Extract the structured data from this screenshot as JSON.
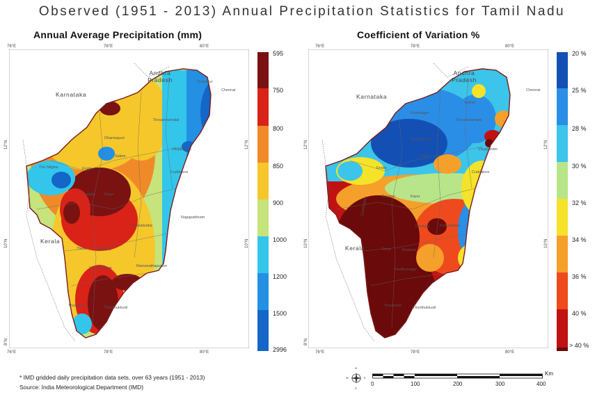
{
  "title": "Observed (1951 - 2013) Annual Precipitation Statistics for Tamil Nadu",
  "left_map": {
    "title": "Annual Average Precipitation (mm)",
    "legend": {
      "labels": [
        "595",
        "750",
        "800",
        "850",
        "900",
        "1000",
        "1200",
        "1500",
        "2996"
      ],
      "colors": [
        "#7a1212",
        "#d92218",
        "#f08a28",
        "#f5c72a",
        "#c6e37c",
        "#33c6ea",
        "#2490e4",
        "#1466c8",
        "#0d3f9c"
      ]
    }
  },
  "right_map": {
    "title": "Coefficient of Variation %",
    "legend": {
      "labels": [
        "20 %",
        "25 %",
        "28 %",
        "30 %",
        "32 %",
        "34 %",
        "36 %",
        "40 %",
        "> 40 %"
      ],
      "colors": [
        "#1450b4",
        "#2a8ee6",
        "#3cc4ea",
        "#b8e58a",
        "#f5e22a",
        "#f5a02a",
        "#ee4a1e",
        "#c01212",
        "#6a0a0a"
      ]
    }
  },
  "axes": {
    "x_ticks": [
      "76°E",
      "78°E",
      "80°E"
    ],
    "y_ticks": [
      "12°N",
      "10°N",
      "8°N"
    ]
  },
  "labels": {
    "karnataka": "Karnataka",
    "andhra": "Andhra Pradesh",
    "kerala": "Kerala",
    "chennai": "Chennai"
  },
  "left_cities": [
    "Tiruvallur",
    "Dharmapuri",
    "Erode",
    "Tiruppur",
    "Karur",
    "Pudukkottai",
    "Theni",
    "Madurai",
    "Virudhunagar",
    "Tirunelveli",
    "Thoothukkudi",
    "Viluppuram",
    "Cuddalore",
    "The Nilgiris",
    "Salem",
    "Tiruvannamalai",
    "Nagapattinam",
    "Ramanathapuram"
  ],
  "right_cities": [
    "Vellore",
    "Krishnagiri",
    "Dharmapuri",
    "Salem",
    "Erode",
    "Tiruppur",
    "Karur",
    "Coimbatore",
    "Dindigul",
    "Pudukkottai",
    "Theni",
    "Madurai",
    "Virudhunagar",
    "Tirunelveli",
    "Thoothukkudi",
    "Viluppuram",
    "Cuddalore",
    "Tiruvannamalai"
  ],
  "footnote": {
    "line1": "* IMD gridded daily precipitation data sets, over 63 years (1951 - 2013)",
    "line2": "Source: India Meteorological Department (IMD)"
  },
  "scale_bar": {
    "unit": "Km",
    "ticks": [
      "0",
      "100",
      "200",
      "300",
      "400"
    ]
  },
  "compass": {
    "n": "N",
    "s": "S",
    "e": "E",
    "w": "W"
  },
  "chart_data": {
    "type": "heatmap",
    "maps": [
      {
        "name": "Annual Average Precipitation (mm)",
        "classes": [
          "595",
          "750",
          "800",
          "850",
          "900",
          "1000",
          "1200",
          "1500",
          "2996"
        ],
        "colors": [
          "#7a1212",
          "#d92218",
          "#f08a28",
          "#f5c72a",
          "#c6e37c",
          "#33c6ea",
          "#2490e4",
          "#1466c8",
          "#0d3f9c"
        ]
      },
      {
        "name": "Coefficient of Variation %",
        "classes": [
          "20 %",
          "25 %",
          "28 %",
          "30 %",
          "32 %",
          "34 %",
          "36 %",
          "40 %",
          "> 40 %"
        ],
        "colors": [
          "#1450b4",
          "#2a8ee6",
          "#3cc4ea",
          "#b8e58a",
          "#f5e22a",
          "#f5a02a",
          "#ee4a1e",
          "#c01212",
          "#6a0a0a"
        ]
      }
    ]
  }
}
